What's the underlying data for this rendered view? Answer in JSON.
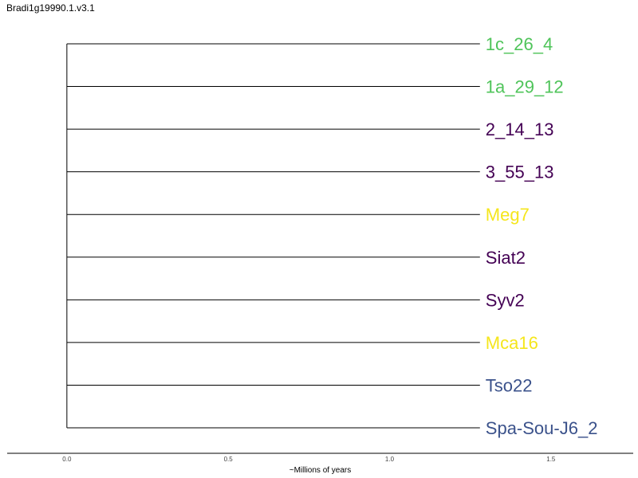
{
  "title": "Bradi1g19990.1.v3.1",
  "tree": {
    "type": "phylogenetic-tree",
    "root_age": 0.0,
    "leaves": [
      {
        "label": "1c_26_4",
        "branch_length": 1.28,
        "color": "#4fc45a"
      },
      {
        "label": "1a_29_12",
        "branch_length": 1.28,
        "color": "#4fc45a"
      },
      {
        "label": "2_14_13",
        "branch_length": 1.28,
        "color": "#440154"
      },
      {
        "label": "3_55_13",
        "branch_length": 1.28,
        "color": "#440154"
      },
      {
        "label": "Meg7",
        "branch_length": 1.28,
        "color": "#f5e61c"
      },
      {
        "label": "Siat2",
        "branch_length": 1.28,
        "color": "#440154"
      },
      {
        "label": "Syv2",
        "branch_length": 1.28,
        "color": "#440154"
      },
      {
        "label": "Mca16",
        "branch_length": 1.28,
        "color": "#f5e61c"
      },
      {
        "label": "Tso22",
        "branch_length": 1.28,
        "color": "#3b528b"
      },
      {
        "label": "Spa-Sou-J6_2",
        "branch_length": 1.28,
        "color": "#3b528b"
      }
    ]
  },
  "axis": {
    "label": "~Millions of years",
    "xlim": [
      -0.185,
      1.755
    ],
    "ticks": [
      {
        "value": 0.0,
        "label": "0.0"
      },
      {
        "value": 0.5,
        "label": "0.5"
      },
      {
        "value": 1.0,
        "label": "1.0"
      },
      {
        "value": 1.5,
        "label": "1.5"
      }
    ]
  }
}
